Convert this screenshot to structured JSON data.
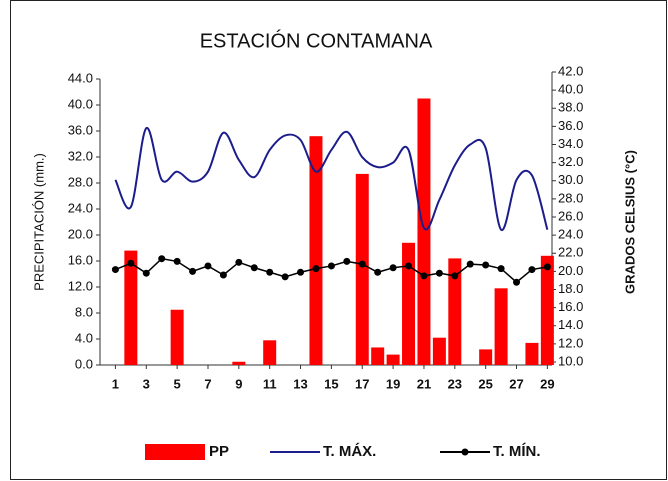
{
  "chart_data": {
    "type": "bar_line",
    "title": "ESTACIÓN CONTAMANA",
    "y_label": "PRECIPITACIÓN (mm.)",
    "y2_label": "GRADOS CELSIUS (°C)",
    "x": [
      1,
      2,
      3,
      4,
      5,
      6,
      7,
      8,
      9,
      10,
      11,
      12,
      13,
      14,
      15,
      16,
      17,
      18,
      19,
      20,
      21,
      22,
      23,
      24,
      25,
      26,
      27,
      28,
      29
    ],
    "xlim": [
      0,
      29.3
    ],
    "xticks": [
      1,
      3,
      5,
      7,
      9,
      11,
      13,
      15,
      17,
      19,
      21,
      23,
      25,
      27,
      29
    ],
    "ylim": [
      0,
      44
    ],
    "yticks": [
      {
        "value": 0,
        "label": "0.0"
      },
      {
        "value": 4,
        "label": "4.0"
      },
      {
        "value": 8,
        "label": "8.0"
      },
      {
        "value": 12,
        "label": "12.0"
      },
      {
        "value": 16,
        "label": "16.0"
      },
      {
        "value": 20,
        "label": "20.0"
      },
      {
        "value": 24,
        "label": "24.0"
      },
      {
        "value": 28,
        "label": "28.0"
      },
      {
        "value": 32,
        "label": "32.0"
      },
      {
        "value": 36,
        "label": "36.0"
      },
      {
        "value": 40,
        "label": "40.0"
      },
      {
        "value": 44,
        "label": "44.0"
      }
    ],
    "y2lim": [
      10,
      42
    ],
    "y2ticks": [
      {
        "value": 10,
        "label": "10.0"
      },
      {
        "value": 12,
        "label": "12.0"
      },
      {
        "value": 14,
        "label": "14.0"
      },
      {
        "value": 16,
        "label": "16.0"
      },
      {
        "value": 18,
        "label": "18.0"
      },
      {
        "value": 20,
        "label": "20.0"
      },
      {
        "value": 22,
        "label": "22.0"
      },
      {
        "value": 24,
        "label": "24.0"
      },
      {
        "value": 26,
        "label": "26.0"
      },
      {
        "value": 28,
        "label": "28.0"
      },
      {
        "value": 30,
        "label": "30.0"
      },
      {
        "value": 32,
        "label": "32.0"
      },
      {
        "value": 34,
        "label": "34.0"
      },
      {
        "value": 36,
        "label": "36.0"
      },
      {
        "value": 38,
        "label": "38.0"
      },
      {
        "value": 40,
        "label": "40.0"
      },
      {
        "value": 42,
        "label": "42.0"
      }
    ],
    "legend": "bottom",
    "series": [
      {
        "name": "PP",
        "kind": "bar",
        "color": "#ff0000",
        "values": [
          0,
          17.6,
          0,
          0,
          8.5,
          0,
          0,
          0,
          0.5,
          0,
          3.8,
          0,
          0,
          35.2,
          0,
          0,
          29.4,
          2.7,
          1.6,
          18.8,
          41.0,
          4.2,
          16.4,
          0,
          2.4,
          11.8,
          0,
          3.4,
          16.8
        ]
      },
      {
        "name": "T. MÁX.",
        "kind": "line",
        "axis": "y2",
        "color": "#1c1c8c",
        "values": [
          30.1,
          27.1,
          35.8,
          30.1,
          31.0,
          29.9,
          31.0,
          35.3,
          32.3,
          30.4,
          33.4,
          35.0,
          34.5,
          31.0,
          33.4,
          35.4,
          32.6,
          31.5,
          32.0,
          33.4,
          24.8,
          27.9,
          31.7,
          34.0,
          33.6,
          24.6,
          30.1,
          30.6,
          24.6
        ]
      },
      {
        "name": "T. MÍN.",
        "kind": "line_marker",
        "axis": "y2",
        "color": "#000000",
        "values": [
          20.2,
          20.9,
          19.8,
          21.4,
          21.1,
          20.0,
          20.6,
          19.6,
          21.0,
          20.4,
          19.9,
          19.4,
          19.9,
          20.3,
          20.6,
          21.1,
          20.8,
          19.9,
          20.4,
          20.6,
          19.5,
          19.8,
          19.5,
          20.8,
          20.7,
          20.3,
          18.8,
          20.2,
          20.5
        ]
      }
    ]
  }
}
